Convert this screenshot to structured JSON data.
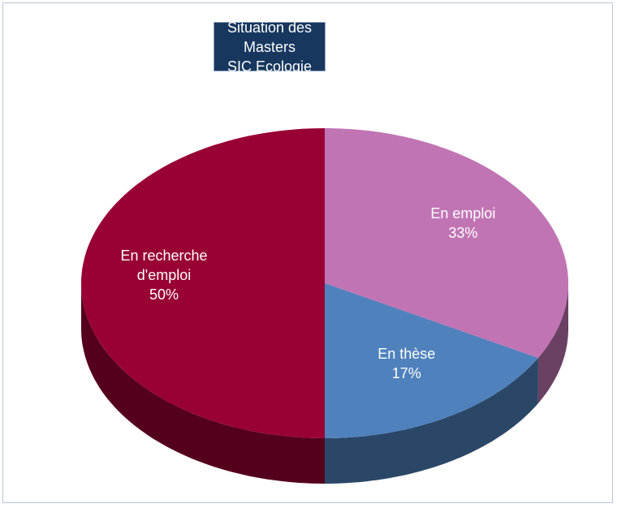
{
  "chart_data": {
    "type": "pie3d",
    "title": "Situation des Masters",
    "subtitle": "SIC Ecologie",
    "categories": [
      "En emploi",
      "En thèse",
      "En recherche d'emploi"
    ],
    "values": [
      33,
      17,
      50
    ],
    "value_labels": [
      "33%",
      "17%",
      "50%"
    ],
    "colors": [
      "#c174b4",
      "#4f81bd",
      "#990033"
    ]
  }
}
